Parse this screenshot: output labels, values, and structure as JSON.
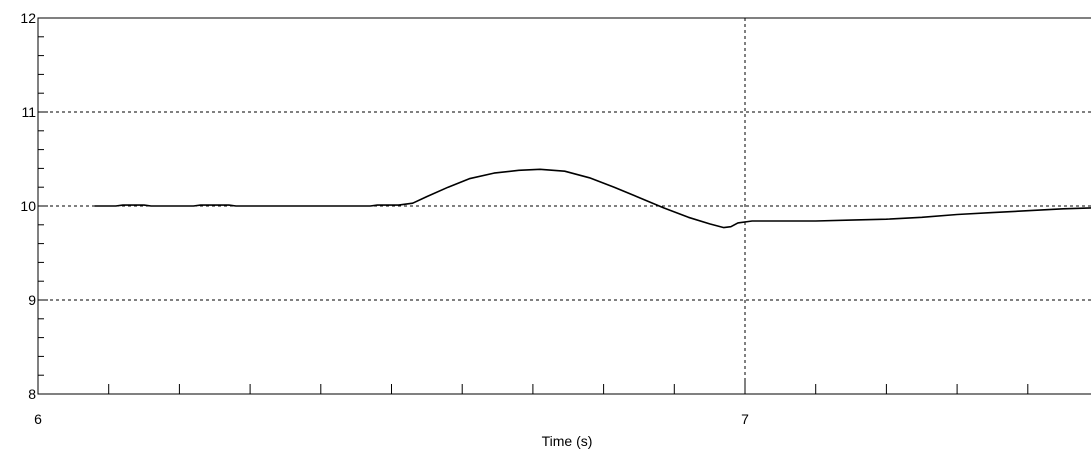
{
  "chart_data": {
    "type": "line",
    "title": "",
    "xlabel": "Time (s)",
    "ylabel": "",
    "xlim": [
      6,
      7.5
    ],
    "ylim": [
      8,
      12
    ],
    "x_ticks": [
      {
        "value": 6,
        "label": "6"
      },
      {
        "value": 7,
        "label": "7"
      }
    ],
    "y_ticks": [
      {
        "value": 8,
        "label": "8"
      },
      {
        "value": 9,
        "label": "9"
      },
      {
        "value": 10,
        "label": "10"
      },
      {
        "value": 11,
        "label": "11"
      },
      {
        "value": 12,
        "label": "12"
      }
    ],
    "x_minor_step": 0.1,
    "y_minor_step": 0.2,
    "grid": {
      "x": [
        7
      ],
      "y": [
        9,
        10,
        11
      ],
      "style": "dotted"
    },
    "line_color": "#000000",
    "series": [
      {
        "points": [
          [
            6.08,
            10.0
          ],
          [
            6.11,
            10.0
          ],
          [
            6.12,
            10.01
          ],
          [
            6.15,
            10.01
          ],
          [
            6.16,
            10.0
          ],
          [
            6.22,
            10.0
          ],
          [
            6.23,
            10.01
          ],
          [
            6.27,
            10.01
          ],
          [
            6.28,
            10.0
          ],
          [
            6.47,
            10.0
          ],
          [
            6.48,
            10.01
          ],
          [
            6.51,
            10.01
          ],
          [
            6.53,
            10.03
          ],
          [
            6.55,
            10.1
          ],
          [
            6.58,
            10.2
          ],
          [
            6.61,
            10.29
          ],
          [
            6.645,
            10.35
          ],
          [
            6.68,
            10.38
          ],
          [
            6.71,
            10.39
          ],
          [
            6.745,
            10.37
          ],
          [
            6.78,
            10.3
          ],
          [
            6.815,
            10.2
          ],
          [
            6.85,
            10.09
          ],
          [
            6.885,
            9.98
          ],
          [
            6.92,
            9.88
          ],
          [
            6.95,
            9.81
          ],
          [
            6.97,
            9.77
          ],
          [
            6.98,
            9.78
          ],
          [
            6.99,
            9.82
          ],
          [
            7.01,
            9.84
          ],
          [
            7.05,
            9.84
          ],
          [
            7.1,
            9.84
          ],
          [
            7.15,
            9.85
          ],
          [
            7.2,
            9.86
          ],
          [
            7.25,
            9.88
          ],
          [
            7.3,
            9.91
          ],
          [
            7.35,
            9.93
          ],
          [
            7.4,
            9.95
          ],
          [
            7.45,
            9.97
          ],
          [
            7.49,
            9.98
          ],
          [
            7.5,
            9.98
          ]
        ]
      }
    ]
  }
}
